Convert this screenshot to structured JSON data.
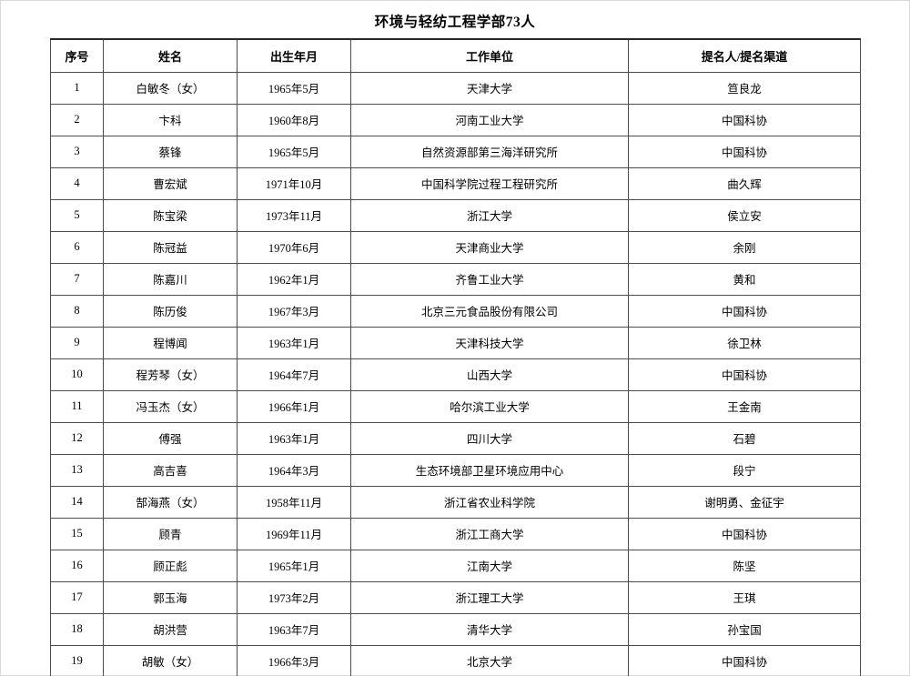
{
  "page": {
    "title": "环境与轻纺工程学部73人"
  },
  "table": {
    "headers": [
      "序号",
      "姓名",
      "出生年月",
      "工作单位",
      "提名人/提名渠道"
    ],
    "rows": [
      [
        "1",
        "白敏冬（女）",
        "1965年5月",
        "天津大学",
        "笪良龙"
      ],
      [
        "2",
        "卞科",
        "1960年8月",
        "河南工业大学",
        "中国科协"
      ],
      [
        "3",
        "蔡锋",
        "1965年5月",
        "自然资源部第三海洋研究所",
        "中国科协"
      ],
      [
        "4",
        "曹宏斌",
        "1971年10月",
        "中国科学院过程工程研究所",
        "曲久辉"
      ],
      [
        "5",
        "陈宝梁",
        "1973年11月",
        "浙江大学",
        "侯立安"
      ],
      [
        "6",
        "陈冠益",
        "1970年6月",
        "天津商业大学",
        "余刚"
      ],
      [
        "7",
        "陈嘉川",
        "1962年1月",
        "齐鲁工业大学",
        "黄和"
      ],
      [
        "8",
        "陈历俊",
        "1967年3月",
        "北京三元食品股份有限公司",
        "中国科协"
      ],
      [
        "9",
        "程博闻",
        "1963年1月",
        "天津科技大学",
        "徐卫林"
      ],
      [
        "10",
        "程芳琴（女）",
        "1964年7月",
        "山西大学",
        "中国科协"
      ],
      [
        "11",
        "冯玉杰（女）",
        "1966年1月",
        "哈尔滨工业大学",
        "王金南"
      ],
      [
        "12",
        "傅强",
        "1963年1月",
        "四川大学",
        "石碧"
      ],
      [
        "13",
        "高吉喜",
        "1964年3月",
        "生态环境部卫星环境应用中心",
        "段宁"
      ],
      [
        "14",
        "郜海燕（女）",
        "1958年11月",
        "浙江省农业科学院",
        "谢明勇、金征宇"
      ],
      [
        "15",
        "顾青",
        "1969年11月",
        "浙江工商大学",
        "中国科协"
      ],
      [
        "16",
        "顾正彪",
        "1965年1月",
        "江南大学",
        "陈坚"
      ],
      [
        "17",
        "郭玉海",
        "1973年2月",
        "浙江理工大学",
        "王琪"
      ],
      [
        "18",
        "胡洪营",
        "1963年7月",
        "清华大学",
        "孙宝国"
      ],
      [
        "19",
        "胡敏（女）",
        "1966年3月",
        "北京大学",
        "中国科协"
      ]
    ]
  }
}
